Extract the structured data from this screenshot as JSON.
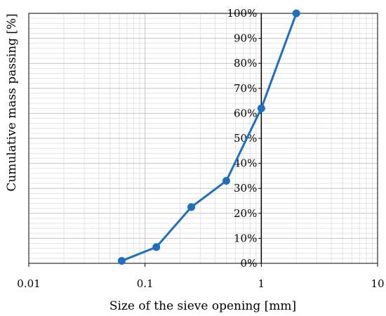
{
  "chart_data": {
    "type": "scatter",
    "xlabel": "Size of the sieve opening [mm]",
    "ylabel": "Cumulative mass passing [%]",
    "x_scale": "log",
    "xlim": [
      0.01,
      10
    ],
    "ylim": [
      0,
      100
    ],
    "x_tick_labels": [
      "0.01",
      "0.1",
      "1",
      "10"
    ],
    "y_tick_labels": [
      "0%",
      "10%",
      "20%",
      "30%",
      "40%",
      "50%",
      "60%",
      "70%",
      "80%",
      "90%",
      "100%"
    ],
    "grid": true,
    "series": [
      {
        "x": [
          0.063,
          0.125,
          0.25,
          0.5,
          1,
          2
        ],
        "y": [
          1,
          6.5,
          22.5,
          33,
          62,
          100
        ],
        "color": "#1f6fc1",
        "line": true,
        "markers": true
      }
    ]
  }
}
